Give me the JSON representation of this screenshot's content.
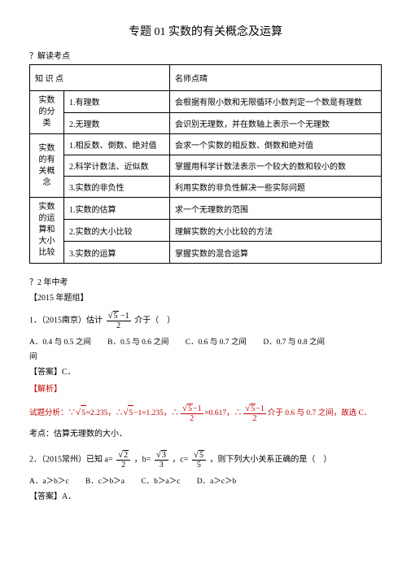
{
  "title": "专题 01 实数的有关概念及运算",
  "section_marker": "？解读考点",
  "table": {
    "header": {
      "col1": "知 识 点",
      "col2": "名师点晴"
    },
    "groups": [
      {
        "cat": "实数的分类",
        "rows": [
          {
            "item": "1.有理数",
            "desc": "会根据有限小数和无限循环小数判定一个数是有理数"
          },
          {
            "item": "2.无理数",
            "desc": "会识别无理数，并在数轴上表示一个无理数"
          }
        ]
      },
      {
        "cat": "实数的有关概念",
        "rows": [
          {
            "item": "1.相反数、倒数、绝对值",
            "desc": "会求一个实数的相反数、倒数和绝对值"
          },
          {
            "item": "2.科学计数法、近似数",
            "desc": "掌握用科学计数法表示一个较大的数和较小的数"
          },
          {
            "item": "3.实数的非负性",
            "desc": "利用实数的非负性解决一些实际问题"
          }
        ]
      },
      {
        "cat": "实数的运算和大小比较",
        "rows": [
          {
            "item": "1.实数的估算",
            "desc": "求一个无理数的范围"
          },
          {
            "item": "2.实数的大小比较",
            "desc": "理解实数的大小比较的方法"
          },
          {
            "item": "3.实数的运算",
            "desc": "掌握实数的混合运算"
          }
        ]
      }
    ]
  },
  "year_marker": "？2 年中考",
  "year_group": "【2015 年题组】",
  "problem1": {
    "prefix": "1．（2015南京）估计",
    "suffix": "介于（　）",
    "opts": {
      "a": "A．0.4 与 0.5 之间",
      "b": "B．0.5 与 0.6 之间",
      "c": "C．0.6 与 0.7 之间",
      "d": "D．0.7 与 0.8 之间"
    },
    "below": "间",
    "answer": "【答案】C．",
    "analysis_label": "【解析】",
    "analysis_prefix": "试题分析：∵",
    "analysis_mid1": "≈2.235，∴",
    "analysis_mid2": "−1≈1.235，∴",
    "analysis_mid3": "≈0.617，∴",
    "analysis_end": "介于 0.6 与 0.7 之间，故选 C．",
    "kaodian": "考点：估算无理数的大小．"
  },
  "problem2": {
    "prefix": "2．（2015常州）已知 a=",
    "mid1": "，b=",
    "mid2": "，c=",
    "suffix": "，则下列大小关系正确的是（　）",
    "opts": {
      "a": "A．a＞b＞c",
      "b": "B．c＞b＞a",
      "c": "C．b＞a＞c",
      "d": "D．a＞c＞b"
    },
    "answer": "【答案】A．"
  }
}
